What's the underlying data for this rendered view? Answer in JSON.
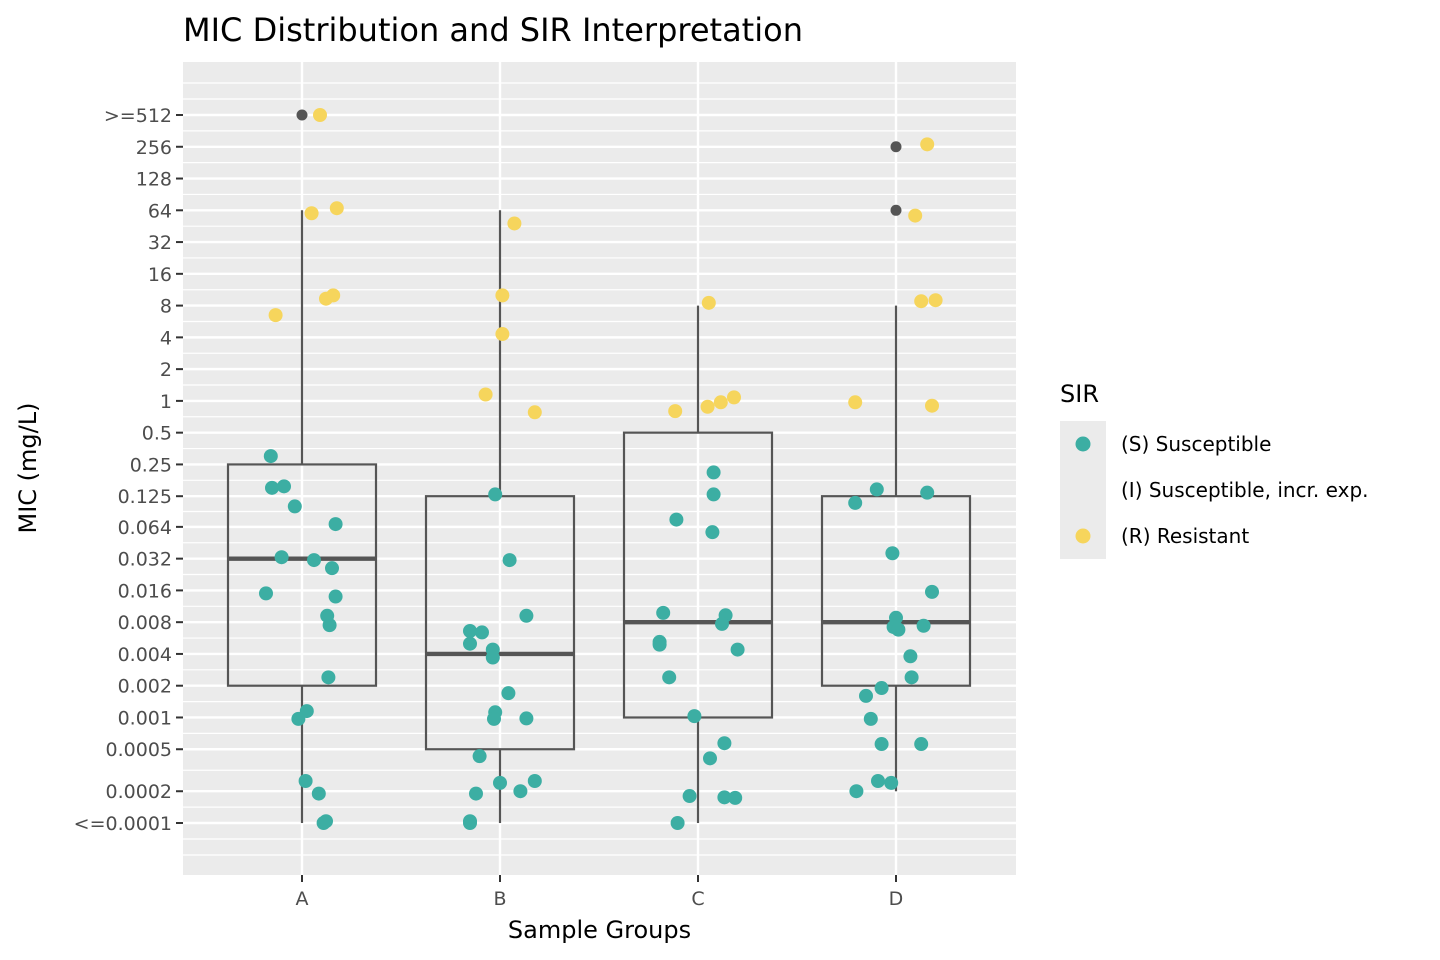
{
  "chart_data": {
    "type": "boxplot",
    "title": "MIC Distribution and SIR Interpretation",
    "xlabel": "Sample Groups",
    "ylabel": "MIC (mg/L)",
    "y_scale": "log2",
    "categories": [
      "A",
      "B",
      "C",
      "D"
    ],
    "y_ticks": [
      {
        "value": 0.0001,
        "label": "<=0.0001"
      },
      {
        "value": 0.0002,
        "label": "0.0002"
      },
      {
        "value": 0.0005,
        "label": "0.0005"
      },
      {
        "value": 0.001,
        "label": "0.001"
      },
      {
        "value": 0.002,
        "label": "0.002"
      },
      {
        "value": 0.004,
        "label": "0.004"
      },
      {
        "value": 0.008,
        "label": "0.008"
      },
      {
        "value": 0.016,
        "label": "0.016"
      },
      {
        "value": 0.032,
        "label": "0.032"
      },
      {
        "value": 0.064,
        "label": "0.064"
      },
      {
        "value": 0.125,
        "label": "0.125"
      },
      {
        "value": 0.25,
        "label": "0.25"
      },
      {
        "value": 0.5,
        "label": "0.5"
      },
      {
        "value": 1,
        "label": "1"
      },
      {
        "value": 2,
        "label": "2"
      },
      {
        "value": 4,
        "label": "4"
      },
      {
        "value": 8,
        "label": "8"
      },
      {
        "value": 16,
        "label": "16"
      },
      {
        "value": 32,
        "label": "32"
      },
      {
        "value": 64,
        "label": "64"
      },
      {
        "value": 128,
        "label": "128"
      },
      {
        "value": 256,
        "label": "256"
      },
      {
        "value": 512,
        "label": ">=512"
      }
    ],
    "boxes": [
      {
        "group": "A",
        "whisker_low": 0.0001,
        "q1": 0.002,
        "median": 0.032,
        "q3": 0.25,
        "whisker_high": 64,
        "outliers": [
          512
        ]
      },
      {
        "group": "B",
        "whisker_low": 0.0001,
        "q1": 0.0005,
        "median": 0.004,
        "q3": 0.125,
        "whisker_high": 64,
        "outliers": []
      },
      {
        "group": "C",
        "whisker_low": 0.0001,
        "q1": 0.001,
        "median": 0.008,
        "q3": 0.5,
        "whisker_high": 8,
        "outliers": []
      },
      {
        "group": "D",
        "whisker_low": 0.0002,
        "q1": 0.002,
        "median": 0.008,
        "q3": 0.125,
        "whisker_high": 8,
        "outliers": [
          256,
          64
        ]
      }
    ],
    "points": [
      {
        "group": "A",
        "sir": "R",
        "jitter": 0.15,
        "y": 512
      },
      {
        "group": "A",
        "sir": "R",
        "jitter": 0.08,
        "y": 60
      },
      {
        "group": "A",
        "sir": "R",
        "jitter": 0.29,
        "y": 67
      },
      {
        "group": "A",
        "sir": "R",
        "jitter": -0.22,
        "y": 6.5
      },
      {
        "group": "A",
        "sir": "R",
        "jitter": 0.2,
        "y": 9.3
      },
      {
        "group": "A",
        "sir": "R",
        "jitter": 0.26,
        "y": 10
      },
      {
        "group": "A",
        "sir": "S",
        "jitter": -0.26,
        "y": 0.3
      },
      {
        "group": "A",
        "sir": "S",
        "jitter": -0.25,
        "y": 0.15
      },
      {
        "group": "A",
        "sir": "S",
        "jitter": -0.15,
        "y": 0.155
      },
      {
        "group": "A",
        "sir": "S",
        "jitter": -0.06,
        "y": 0.1
      },
      {
        "group": "A",
        "sir": "S",
        "jitter": 0.28,
        "y": 0.068
      },
      {
        "group": "A",
        "sir": "S",
        "jitter": -0.17,
        "y": 0.033
      },
      {
        "group": "A",
        "sir": "S",
        "jitter": 0.1,
        "y": 0.031
      },
      {
        "group": "A",
        "sir": "S",
        "jitter": 0.25,
        "y": 0.026
      },
      {
        "group": "A",
        "sir": "S",
        "jitter": -0.3,
        "y": 0.015
      },
      {
        "group": "A",
        "sir": "S",
        "jitter": 0.28,
        "y": 0.014
      },
      {
        "group": "A",
        "sir": "S",
        "jitter": 0.21,
        "y": 0.0092
      },
      {
        "group": "A",
        "sir": "S",
        "jitter": 0.23,
        "y": 0.0075
      },
      {
        "group": "A",
        "sir": "S",
        "jitter": 0.22,
        "y": 0.0024
      },
      {
        "group": "A",
        "sir": "S",
        "jitter": 0.04,
        "y": 0.00115
      },
      {
        "group": "A",
        "sir": "S",
        "jitter": -0.03,
        "y": 0.00097
      },
      {
        "group": "A",
        "sir": "S",
        "jitter": 0.03,
        "y": 0.00025
      },
      {
        "group": "A",
        "sir": "S",
        "jitter": 0.14,
        "y": 0.00019
      },
      {
        "group": "A",
        "sir": "S",
        "jitter": 0.2,
        "y": 0.000104
      },
      {
        "group": "A",
        "sir": "S",
        "jitter": 0.18,
        "y": 0.0001
      },
      {
        "group": "B",
        "sir": "R",
        "jitter": 0.12,
        "y": 48
      },
      {
        "group": "B",
        "sir": "R",
        "jitter": 0.02,
        "y": 10
      },
      {
        "group": "B",
        "sir": "R",
        "jitter": 0.02,
        "y": 4.3
      },
      {
        "group": "B",
        "sir": "R",
        "jitter": -0.12,
        "y": 1.15
      },
      {
        "group": "B",
        "sir": "R",
        "jitter": 0.29,
        "y": 0.78
      },
      {
        "group": "B",
        "sir": "S",
        "jitter": -0.04,
        "y": 0.13
      },
      {
        "group": "B",
        "sir": "S",
        "jitter": 0.08,
        "y": 0.031
      },
      {
        "group": "B",
        "sir": "S",
        "jitter": 0.22,
        "y": 0.0092
      },
      {
        "group": "B",
        "sir": "S",
        "jitter": -0.25,
        "y": 0.0066
      },
      {
        "group": "B",
        "sir": "S",
        "jitter": -0.15,
        "y": 0.0064
      },
      {
        "group": "B",
        "sir": "S",
        "jitter": -0.25,
        "y": 0.005
      },
      {
        "group": "B",
        "sir": "S",
        "jitter": -0.06,
        "y": 0.0044
      },
      {
        "group": "B",
        "sir": "S",
        "jitter": -0.06,
        "y": 0.0037
      },
      {
        "group": "B",
        "sir": "S",
        "jitter": 0.07,
        "y": 0.0017
      },
      {
        "group": "B",
        "sir": "S",
        "jitter": -0.04,
        "y": 0.00112
      },
      {
        "group": "B",
        "sir": "S",
        "jitter": -0.05,
        "y": 0.00097
      },
      {
        "group": "B",
        "sir": "S",
        "jitter": 0.22,
        "y": 0.00098
      },
      {
        "group": "B",
        "sir": "S",
        "jitter": -0.17,
        "y": 0.00043
      },
      {
        "group": "B",
        "sir": "S",
        "jitter": 0.0,
        "y": 0.00024
      },
      {
        "group": "B",
        "sir": "S",
        "jitter": 0.29,
        "y": 0.00025
      },
      {
        "group": "B",
        "sir": "S",
        "jitter": 0.17,
        "y": 0.0002
      },
      {
        "group": "B",
        "sir": "S",
        "jitter": -0.2,
        "y": 0.00019
      },
      {
        "group": "B",
        "sir": "S",
        "jitter": -0.25,
        "y": 0.000104
      },
      {
        "group": "B",
        "sir": "S",
        "jitter": -0.25,
        "y": 0.0001
      },
      {
        "group": "C",
        "sir": "R",
        "jitter": 0.09,
        "y": 8.5
      },
      {
        "group": "C",
        "sir": "R",
        "jitter": -0.19,
        "y": 0.8
      },
      {
        "group": "C",
        "sir": "R",
        "jitter": 0.08,
        "y": 0.88
      },
      {
        "group": "C",
        "sir": "R",
        "jitter": 0.19,
        "y": 0.97
      },
      {
        "group": "C",
        "sir": "R",
        "jitter": 0.3,
        "y": 1.08
      },
      {
        "group": "C",
        "sir": "S",
        "jitter": 0.13,
        "y": 0.21
      },
      {
        "group": "C",
        "sir": "S",
        "jitter": 0.13,
        "y": 0.13
      },
      {
        "group": "C",
        "sir": "S",
        "jitter": -0.18,
        "y": 0.075
      },
      {
        "group": "C",
        "sir": "S",
        "jitter": 0.12,
        "y": 0.057
      },
      {
        "group": "C",
        "sir": "S",
        "jitter": -0.29,
        "y": 0.0098
      },
      {
        "group": "C",
        "sir": "S",
        "jitter": 0.23,
        "y": 0.0093
      },
      {
        "group": "C",
        "sir": "S",
        "jitter": 0.2,
        "y": 0.0077
      },
      {
        "group": "C",
        "sir": "S",
        "jitter": -0.32,
        "y": 0.0052
      },
      {
        "group": "C",
        "sir": "S",
        "jitter": -0.32,
        "y": 0.0049
      },
      {
        "group": "C",
        "sir": "S",
        "jitter": 0.33,
        "y": 0.0044
      },
      {
        "group": "C",
        "sir": "S",
        "jitter": -0.24,
        "y": 0.0024
      },
      {
        "group": "C",
        "sir": "S",
        "jitter": -0.03,
        "y": 0.00103
      },
      {
        "group": "C",
        "sir": "S",
        "jitter": 0.22,
        "y": 0.00057
      },
      {
        "group": "C",
        "sir": "S",
        "jitter": 0.1,
        "y": 0.00041
      },
      {
        "group": "C",
        "sir": "S",
        "jitter": -0.07,
        "y": 0.00018
      },
      {
        "group": "C",
        "sir": "S",
        "jitter": 0.22,
        "y": 0.000175
      },
      {
        "group": "C",
        "sir": "S",
        "jitter": 0.31,
        "y": 0.000173
      },
      {
        "group": "C",
        "sir": "S",
        "jitter": -0.17,
        "y": 0.0001
      },
      {
        "group": "D",
        "sir": "R",
        "jitter": 0.26,
        "y": 270
      },
      {
        "group": "D",
        "sir": "R",
        "jitter": 0.16,
        "y": 57
      },
      {
        "group": "D",
        "sir": "R",
        "jitter": 0.21,
        "y": 8.8
      },
      {
        "group": "D",
        "sir": "R",
        "jitter": 0.33,
        "y": 9
      },
      {
        "group": "D",
        "sir": "R",
        "jitter": -0.34,
        "y": 0.97
      },
      {
        "group": "D",
        "sir": "R",
        "jitter": 0.3,
        "y": 0.9
      },
      {
        "group": "D",
        "sir": "S",
        "jitter": -0.16,
        "y": 0.145
      },
      {
        "group": "D",
        "sir": "S",
        "jitter": -0.34,
        "y": 0.108
      },
      {
        "group": "D",
        "sir": "S",
        "jitter": 0.26,
        "y": 0.135
      },
      {
        "group": "D",
        "sir": "S",
        "jitter": -0.03,
        "y": 0.036
      },
      {
        "group": "D",
        "sir": "S",
        "jitter": 0.3,
        "y": 0.0155
      },
      {
        "group": "D",
        "sir": "S",
        "jitter": 0.0,
        "y": 0.0088
      },
      {
        "group": "D",
        "sir": "S",
        "jitter": -0.02,
        "y": 0.0072
      },
      {
        "group": "D",
        "sir": "S",
        "jitter": 0.02,
        "y": 0.0068
      },
      {
        "group": "D",
        "sir": "S",
        "jitter": 0.23,
        "y": 0.0074
      },
      {
        "group": "D",
        "sir": "S",
        "jitter": 0.12,
        "y": 0.0038
      },
      {
        "group": "D",
        "sir": "S",
        "jitter": 0.13,
        "y": 0.0024
      },
      {
        "group": "D",
        "sir": "S",
        "jitter": -0.12,
        "y": 0.0019
      },
      {
        "group": "D",
        "sir": "S",
        "jitter": -0.25,
        "y": 0.0016
      },
      {
        "group": "D",
        "sir": "S",
        "jitter": -0.21,
        "y": 0.00097
      },
      {
        "group": "D",
        "sir": "S",
        "jitter": -0.12,
        "y": 0.00056
      },
      {
        "group": "D",
        "sir": "S",
        "jitter": 0.21,
        "y": 0.00056
      },
      {
        "group": "D",
        "sir": "S",
        "jitter": -0.15,
        "y": 0.00025
      },
      {
        "group": "D",
        "sir": "S",
        "jitter": -0.04,
        "y": 0.00024
      },
      {
        "group": "D",
        "sir": "S",
        "jitter": -0.33,
        "y": 0.0002
      }
    ],
    "legend": {
      "title": "SIR",
      "position": "right",
      "entries": [
        {
          "key": "S",
          "label": "(S) Susceptible",
          "color": "#3CAEA3"
        },
        {
          "key": "I",
          "label": "(I) Susceptible, incr. exp.",
          "color": null
        },
        {
          "key": "R",
          "label": "(R) Resistant",
          "color": "#F6D55C"
        }
      ]
    },
    "colors": {
      "S": "#3CAEA3",
      "R": "#F6D55C",
      "outlier": "#555555",
      "box": "#555555",
      "panel": "#EBEBEB",
      "grid": "#FFFFFF"
    },
    "grid": true
  }
}
